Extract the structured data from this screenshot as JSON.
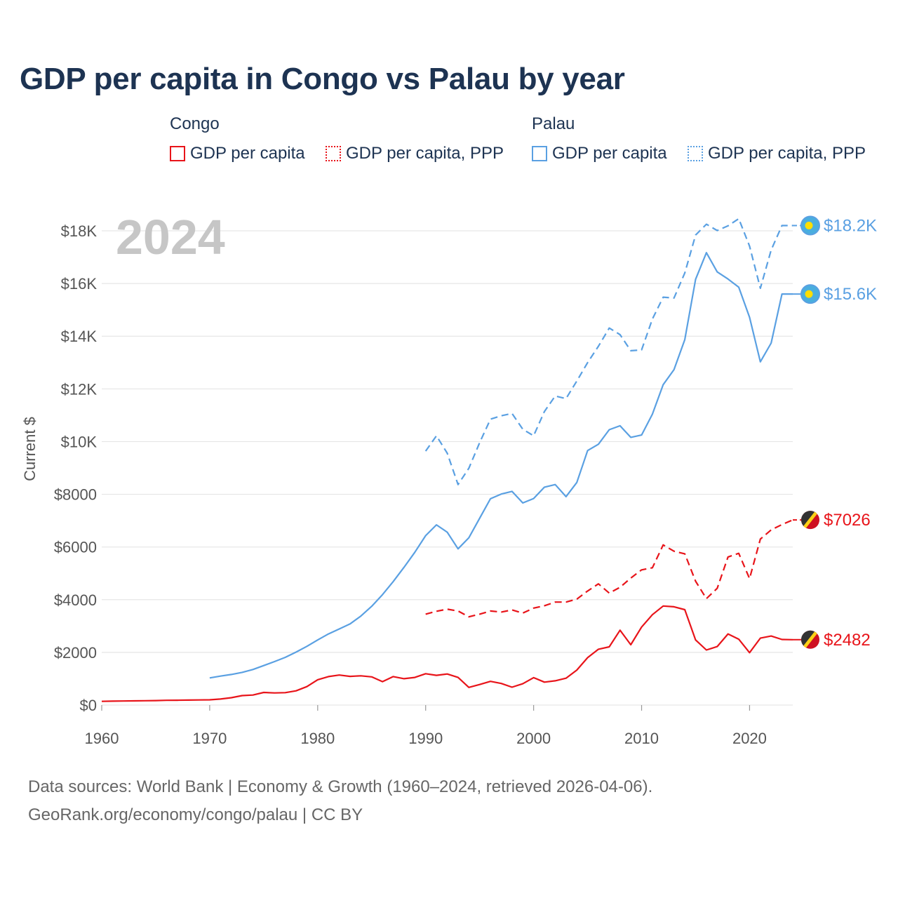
{
  "title": "GDP per capita in Congo vs Palau by year",
  "legend": {
    "groups": [
      {
        "name": "Congo",
        "items": [
          {
            "label": "GDP per capita",
            "style": "solid",
            "color": "#e8141a"
          },
          {
            "label": "GDP per capita, PPP",
            "style": "dotted",
            "color": "#e8141a"
          }
        ]
      },
      {
        "name": "Palau",
        "items": [
          {
            "label": "GDP per capita",
            "style": "solid",
            "color": "#5aa0e2"
          },
          {
            "label": "GDP per capita, PPP",
            "style": "dotted",
            "color": "#5aa0e2"
          }
        ]
      }
    ]
  },
  "chart_data": {
    "type": "line",
    "title": "GDP per capita in Congo vs Palau by year",
    "year_label": "2024",
    "xlabel": "",
    "ylabel": "Current $",
    "xlim": [
      1960,
      2024
    ],
    "ylim": [
      0,
      18000
    ],
    "x_ticks": [
      1960,
      1970,
      1980,
      1990,
      2000,
      2010,
      2020
    ],
    "x_tick_labels": [
      "1960",
      "1970",
      "1980",
      "1990",
      "2000",
      "2010",
      "2020"
    ],
    "y_ticks": [
      0,
      2000,
      4000,
      6000,
      8000,
      10000,
      12000,
      14000,
      16000,
      18000
    ],
    "y_tick_labels": [
      "$0",
      "$2000",
      "$4000",
      "$6000",
      "$8000",
      "$10K",
      "$12K",
      "$14K",
      "$16K",
      "$18K"
    ],
    "grid": true,
    "series": [
      {
        "name": "Congo GDP per capita",
        "country": "Congo",
        "color": "#e8141a",
        "dash": "solid",
        "end_label": "$2482",
        "flag": "congo",
        "x": [
          1960,
          1961,
          1962,
          1963,
          1964,
          1965,
          1966,
          1967,
          1968,
          1969,
          1970,
          1971,
          1972,
          1973,
          1974,
          1975,
          1976,
          1977,
          1978,
          1979,
          1980,
          1981,
          1982,
          1983,
          1984,
          1985,
          1986,
          1987,
          1988,
          1989,
          1990,
          1991,
          1992,
          1993,
          1994,
          1995,
          1996,
          1997,
          1998,
          1999,
          2000,
          2001,
          2002,
          2003,
          2004,
          2005,
          2006,
          2007,
          2008,
          2009,
          2010,
          2011,
          2012,
          2013,
          2014,
          2015,
          2016,
          2017,
          2018,
          2019,
          2020,
          2021,
          2022,
          2023,
          2024
        ],
        "values": [
          140,
          150,
          155,
          160,
          165,
          170,
          180,
          185,
          190,
          195,
          200,
          230,
          280,
          360,
          380,
          480,
          460,
          470,
          540,
          700,
          960,
          1080,
          1140,
          1090,
          1110,
          1070,
          890,
          1080,
          1000,
          1050,
          1190,
          1130,
          1180,
          1050,
          670,
          780,
          900,
          820,
          680,
          810,
          1040,
          870,
          920,
          1020,
          1330,
          1800,
          2120,
          2210,
          2840,
          2290,
          2960,
          3430,
          3760,
          3730,
          3620,
          2470,
          2090,
          2220,
          2700,
          2500,
          1990,
          2540,
          2620,
          2490,
          2482
        ]
      },
      {
        "name": "Congo GDP per capita, PPP",
        "country": "Congo",
        "color": "#e8141a",
        "dash": "dashed",
        "end_label": "$7026",
        "flag": "congo",
        "x": [
          1990,
          1991,
          1992,
          1993,
          1994,
          1995,
          1996,
          1997,
          1998,
          1999,
          2000,
          2001,
          2002,
          2003,
          2004,
          2005,
          2006,
          2007,
          2008,
          2009,
          2010,
          2011,
          2012,
          2013,
          2014,
          2015,
          2016,
          2017,
          2018,
          2019,
          2020,
          2021,
          2022,
          2023,
          2024
        ],
        "values": [
          3450,
          3560,
          3640,
          3570,
          3350,
          3450,
          3570,
          3530,
          3610,
          3490,
          3680,
          3770,
          3910,
          3910,
          4020,
          4330,
          4600,
          4250,
          4470,
          4820,
          5130,
          5210,
          6080,
          5840,
          5740,
          4700,
          4040,
          4430,
          5620,
          5760,
          4800,
          6300,
          6650,
          6850,
          7026
        ]
      },
      {
        "name": "Palau GDP per capita",
        "country": "Palau",
        "color": "#5aa0e2",
        "dash": "solid",
        "end_label": "$15.6K",
        "flag": "palau",
        "x": [
          1970,
          1971,
          1972,
          1973,
          1974,
          1975,
          1976,
          1977,
          1978,
          1979,
          1980,
          1981,
          1982,
          1983,
          1984,
          1985,
          1986,
          1987,
          1988,
          1989,
          1990,
          1991,
          1992,
          1993,
          1994,
          1995,
          1996,
          1997,
          1998,
          1999,
          2000,
          2001,
          2002,
          2003,
          2004,
          2005,
          2006,
          2007,
          2008,
          2009,
          2010,
          2011,
          2012,
          2013,
          2014,
          2015,
          2016,
          2017,
          2018,
          2019,
          2020,
          2021,
          2022,
          2023,
          2024
        ],
        "values": [
          1030,
          1100,
          1160,
          1240,
          1350,
          1500,
          1650,
          1810,
          2010,
          2230,
          2470,
          2700,
          2890,
          3080,
          3380,
          3750,
          4190,
          4690,
          5230,
          5800,
          6430,
          6840,
          6560,
          5930,
          6350,
          7090,
          7830,
          8010,
          8110,
          7670,
          7840,
          8270,
          8370,
          7910,
          8450,
          9660,
          9900,
          10450,
          10600,
          10160,
          10250,
          11040,
          12160,
          12730,
          13870,
          16160,
          17170,
          16440,
          16170,
          15860,
          14720,
          13030,
          13740,
          15600,
          15600
        ]
      },
      {
        "name": "Palau GDP per capita, PPP",
        "country": "Palau",
        "color": "#5aa0e2",
        "dash": "dashed",
        "end_label": "$18.2K",
        "flag": "palau",
        "x": [
          1990,
          1991,
          1992,
          1993,
          1994,
          1995,
          1996,
          1997,
          1998,
          1999,
          2000,
          2001,
          2002,
          2003,
          2004,
          2005,
          2006,
          2007,
          2008,
          2009,
          2010,
          2011,
          2012,
          2013,
          2014,
          2015,
          2016,
          2017,
          2018,
          2019,
          2020,
          2021,
          2022,
          2023,
          2024
        ],
        "values": [
          9640,
          10220,
          9560,
          8370,
          8990,
          9960,
          10850,
          10980,
          11070,
          10470,
          10220,
          11140,
          11730,
          11630,
          12300,
          13000,
          13620,
          14310,
          14060,
          13450,
          13480,
          14650,
          15480,
          15450,
          16400,
          17840,
          18250,
          18010,
          18190,
          18460,
          17420,
          15820,
          17270,
          18200,
          18200
        ]
      }
    ]
  },
  "footer": {
    "line1": "Data sources: World Bank | Economy & Growth (1960–2024, retrieved 2026-04-06).",
    "line2": "GeoRank.org/economy/congo/palau | CC BY"
  }
}
